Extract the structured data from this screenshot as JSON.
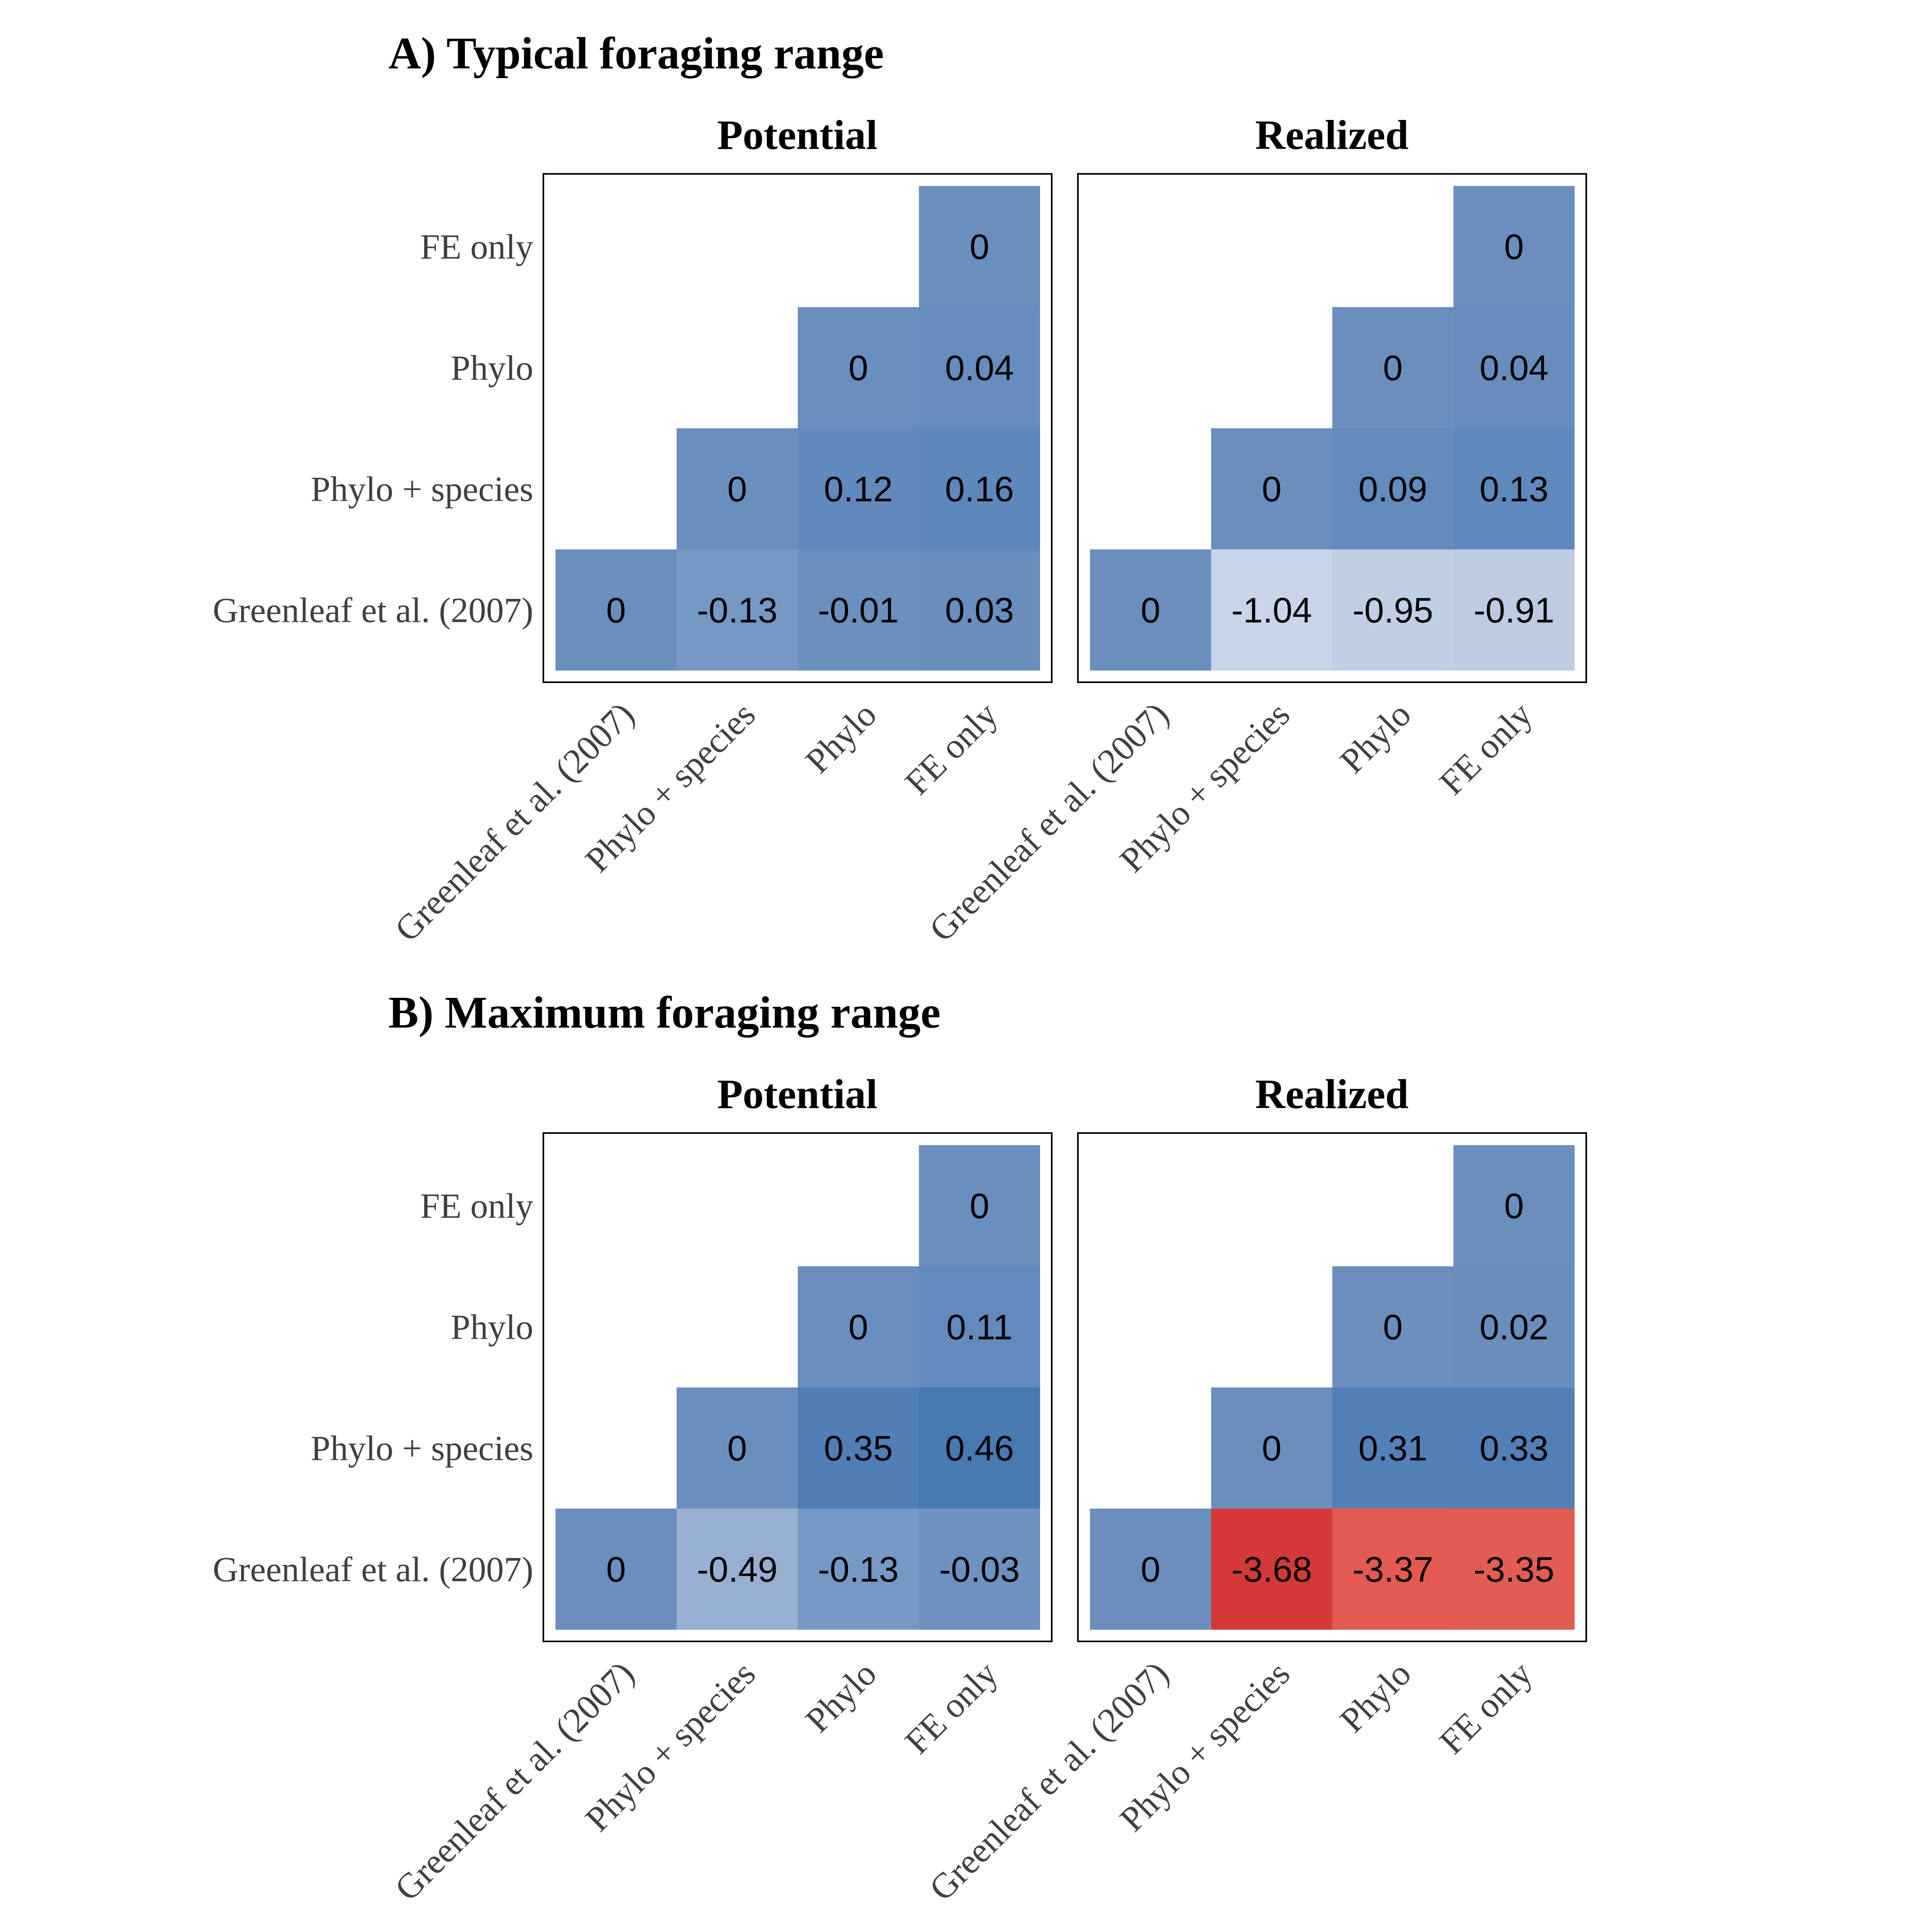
{
  "chart_data": [
    {
      "type": "heatmap",
      "section": "A) Typical foraging range",
      "facets": [
        {
          "title": "Potential",
          "x_categories": [
            "Greenleaf et al. (2007)",
            "Phylo + species",
            "Phylo",
            "FE only"
          ],
          "y_categories": [
            "Greenleaf et al. (2007)",
            "Phylo + species",
            "Phylo",
            "FE only"
          ],
          "cells": [
            {
              "x": "Greenleaf et al. (2007)",
              "y": "Greenleaf et al. (2007)",
              "value": 0,
              "label": "0"
            },
            {
              "x": "Phylo + species",
              "y": "Greenleaf et al. (2007)",
              "value": -0.13,
              "label": "-0.13"
            },
            {
              "x": "Phylo",
              "y": "Greenleaf et al. (2007)",
              "value": -0.01,
              "label": "-0.01"
            },
            {
              "x": "FE only",
              "y": "Greenleaf et al. (2007)",
              "value": 0.03,
              "label": "0.03"
            },
            {
              "x": "Phylo + species",
              "y": "Phylo + species",
              "value": 0,
              "label": "0"
            },
            {
              "x": "Phylo",
              "y": "Phylo + species",
              "value": 0.12,
              "label": "0.12"
            },
            {
              "x": "FE only",
              "y": "Phylo + species",
              "value": 0.16,
              "label": "0.16"
            },
            {
              "x": "Phylo",
              "y": "Phylo",
              "value": 0,
              "label": "0"
            },
            {
              "x": "FE only",
              "y": "Phylo",
              "value": 0.04,
              "label": "0.04"
            },
            {
              "x": "FE only",
              "y": "FE only",
              "value": 0,
              "label": "0"
            }
          ]
        },
        {
          "title": "Realized",
          "x_categories": [
            "Greenleaf et al. (2007)",
            "Phylo + species",
            "Phylo",
            "FE only"
          ],
          "y_categories": [
            "Greenleaf et al. (2007)",
            "Phylo + species",
            "Phylo",
            "FE only"
          ],
          "cells": [
            {
              "x": "Greenleaf et al. (2007)",
              "y": "Greenleaf et al. (2007)",
              "value": 0,
              "label": "0"
            },
            {
              "x": "Phylo + species",
              "y": "Greenleaf et al. (2007)",
              "value": -1.04,
              "label": "-1.04"
            },
            {
              "x": "Phylo",
              "y": "Greenleaf et al. (2007)",
              "value": -0.95,
              "label": "-0.95"
            },
            {
              "x": "FE only",
              "y": "Greenleaf et al. (2007)",
              "value": -0.91,
              "label": "-0.91"
            },
            {
              "x": "Phylo + species",
              "y": "Phylo + species",
              "value": 0,
              "label": "0"
            },
            {
              "x": "Phylo",
              "y": "Phylo + species",
              "value": 0.09,
              "label": "0.09"
            },
            {
              "x": "FE only",
              "y": "Phylo + species",
              "value": 0.13,
              "label": "0.13"
            },
            {
              "x": "Phylo",
              "y": "Phylo",
              "value": 0,
              "label": "0"
            },
            {
              "x": "FE only",
              "y": "Phylo",
              "value": 0.04,
              "label": "0.04"
            },
            {
              "x": "FE only",
              "y": "FE only",
              "value": 0,
              "label": "0"
            }
          ]
        }
      ]
    },
    {
      "type": "heatmap",
      "section": "B) Maximum foraging range",
      "facets": [
        {
          "title": "Potential",
          "x_categories": [
            "Greenleaf et al. (2007)",
            "Phylo + species",
            "Phylo",
            "FE only"
          ],
          "y_categories": [
            "Greenleaf et al. (2007)",
            "Phylo + species",
            "Phylo",
            "FE only"
          ],
          "cells": [
            {
              "x": "Greenleaf et al. (2007)",
              "y": "Greenleaf et al. (2007)",
              "value": 0,
              "label": "0"
            },
            {
              "x": "Phylo + species",
              "y": "Greenleaf et al. (2007)",
              "value": -0.49,
              "label": "-0.49"
            },
            {
              "x": "Phylo",
              "y": "Greenleaf et al. (2007)",
              "value": -0.13,
              "label": "-0.13"
            },
            {
              "x": "FE only",
              "y": "Greenleaf et al. (2007)",
              "value": -0.03,
              "label": "-0.03"
            },
            {
              "x": "Phylo + species",
              "y": "Phylo + species",
              "value": 0,
              "label": "0"
            },
            {
              "x": "Phylo",
              "y": "Phylo + species",
              "value": 0.35,
              "label": "0.35"
            },
            {
              "x": "FE only",
              "y": "Phylo + species",
              "value": 0.46,
              "label": "0.46"
            },
            {
              "x": "Phylo",
              "y": "Phylo",
              "value": 0,
              "label": "0"
            },
            {
              "x": "FE only",
              "y": "Phylo",
              "value": 0.11,
              "label": "0.11"
            },
            {
              "x": "FE only",
              "y": "FE only",
              "value": 0,
              "label": "0"
            }
          ]
        },
        {
          "title": "Realized",
          "x_categories": [
            "Greenleaf et al. (2007)",
            "Phylo + species",
            "Phylo",
            "FE only"
          ],
          "y_categories": [
            "Greenleaf et al. (2007)",
            "Phylo + species",
            "Phylo",
            "FE only"
          ],
          "cells": [
            {
              "x": "Greenleaf et al. (2007)",
              "y": "Greenleaf et al. (2007)",
              "value": 0,
              "label": "0"
            },
            {
              "x": "Phylo + species",
              "y": "Greenleaf et al. (2007)",
              "value": -3.68,
              "label": "-3.68"
            },
            {
              "x": "Phylo",
              "y": "Greenleaf et al. (2007)",
              "value": -3.37,
              "label": "-3.37"
            },
            {
              "x": "FE only",
              "y": "Greenleaf et al. (2007)",
              "value": -3.35,
              "label": "-3.35"
            },
            {
              "x": "Phylo + species",
              "y": "Phylo + species",
              "value": 0,
              "label": "0"
            },
            {
              "x": "Phylo",
              "y": "Phylo + species",
              "value": 0.31,
              "label": "0.31"
            },
            {
              "x": "FE only",
              "y": "Phylo + species",
              "value": 0.33,
              "label": "0.33"
            },
            {
              "x": "Phylo",
              "y": "Phylo",
              "value": 0,
              "label": "0"
            },
            {
              "x": "FE only",
              "y": "Phylo",
              "value": 0.02,
              "label": "0.02"
            },
            {
              "x": "FE only",
              "y": "FE only",
              "value": 0,
              "label": "0"
            }
          ]
        }
      ]
    }
  ],
  "colors": {
    "blue_base": "#6a8fbf",
    "blue_strong": "#4577b0",
    "blue_light": "#c9d5e8",
    "red_mid": "#e35c52",
    "red_strong": "#d33a36",
    "white": "#ffffff",
    "frame": "#000000"
  }
}
